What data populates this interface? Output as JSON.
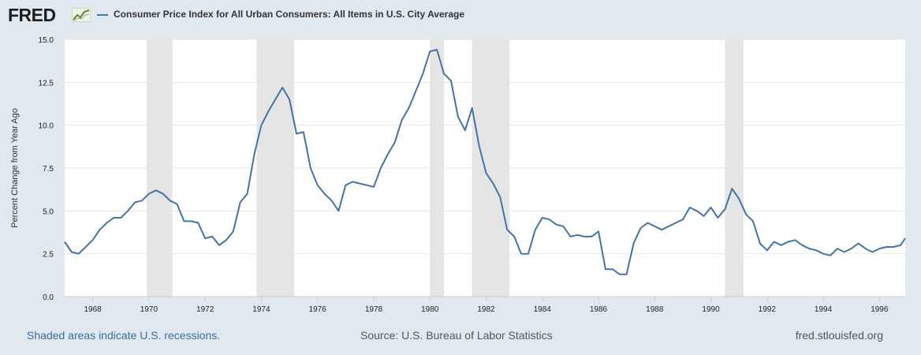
{
  "header": {
    "logo": "FRED",
    "series_title": "Consumer Price Index for All Urban Consumers: All Items in U.S. City Average"
  },
  "footer": {
    "recession_note": "Shaded areas indicate U.S. recessions.",
    "source": "Source: U.S. Bureau of Labor Statistics",
    "site": "fred.stlouisfed.org"
  },
  "colors": {
    "line": "#4572a7",
    "recession": "#e5e5e5",
    "grid": "#e6e6e6",
    "background": "#e1e9f0"
  },
  "chart_data": {
    "type": "line",
    "title": "Consumer Price Index for All Urban Consumers: All Items in U.S. City Average",
    "xlabel": "",
    "ylabel": "Percent Change from Year Ago",
    "xlim": [
      1967.0,
      1996.917
    ],
    "ylim": [
      0,
      15
    ],
    "yticks": [
      0.0,
      2.5,
      5.0,
      7.5,
      10.0,
      12.5,
      15.0
    ],
    "ytick_labels": [
      "0.0",
      "2.5",
      "5.0",
      "7.5",
      "10.0",
      "12.5",
      "15.0"
    ],
    "xticks": [
      1968,
      1970,
      1972,
      1974,
      1976,
      1978,
      1980,
      1982,
      1984,
      1986,
      1988,
      1990,
      1992,
      1994,
      1996
    ],
    "grid": true,
    "recessions": [
      [
        1969.917,
        1970.833
      ],
      [
        1973.833,
        1975.167
      ],
      [
        1980.0,
        1980.5
      ],
      [
        1981.5,
        1982.833
      ],
      [
        1990.5,
        1991.167
      ]
    ],
    "series": [
      {
        "name": "Consumer Price Index for All Urban Consumers: All Items in U.S. City Average",
        "x": [
          1967.0,
          1967.25,
          1967.5,
          1967.75,
          1968.0,
          1968.25,
          1968.5,
          1968.75,
          1969.0,
          1969.25,
          1969.5,
          1969.75,
          1970.0,
          1970.25,
          1970.5,
          1970.75,
          1971.0,
          1971.25,
          1971.5,
          1971.75,
          1972.0,
          1972.25,
          1972.5,
          1972.75,
          1973.0,
          1973.25,
          1973.5,
          1973.75,
          1974.0,
          1974.25,
          1974.5,
          1974.75,
          1975.0,
          1975.25,
          1975.5,
          1975.75,
          1976.0,
          1976.25,
          1976.5,
          1976.75,
          1977.0,
          1977.25,
          1977.5,
          1977.75,
          1978.0,
          1978.25,
          1978.5,
          1978.75,
          1979.0,
          1979.25,
          1979.5,
          1979.75,
          1980.0,
          1980.25,
          1980.5,
          1980.75,
          1981.0,
          1981.25,
          1981.5,
          1981.75,
          1982.0,
          1982.25,
          1982.5,
          1982.75,
          1983.0,
          1983.25,
          1983.5,
          1983.75,
          1984.0,
          1984.25,
          1984.5,
          1984.75,
          1985.0,
          1985.25,
          1985.5,
          1985.75,
          1986.0,
          1986.25,
          1986.5,
          1986.75,
          1987.0,
          1987.25,
          1987.5,
          1987.75,
          1988.0,
          1988.25,
          1988.5,
          1988.75,
          1989.0,
          1989.25,
          1989.5,
          1989.75,
          1990.0,
          1990.25,
          1990.5,
          1990.75,
          1991.0,
          1991.25,
          1991.5,
          1991.75,
          1992.0,
          1992.25,
          1992.5,
          1992.75,
          1993.0,
          1993.25,
          1993.5,
          1993.75,
          1994.0,
          1994.25,
          1994.5,
          1994.75,
          1995.0,
          1995.25,
          1995.5,
          1995.75,
          1996.0,
          1996.25,
          1996.5,
          1996.75,
          1996.917
        ],
        "values": [
          3.2,
          2.6,
          2.5,
          2.9,
          3.3,
          3.9,
          4.3,
          4.6,
          4.6,
          5.0,
          5.5,
          5.6,
          6.0,
          6.2,
          6.0,
          5.6,
          5.4,
          4.4,
          4.4,
          4.3,
          3.4,
          3.5,
          3.0,
          3.3,
          3.8,
          5.5,
          6.0,
          8.3,
          10.0,
          10.8,
          11.5,
          12.2,
          11.5,
          9.5,
          9.6,
          7.5,
          6.5,
          6.0,
          5.6,
          5.0,
          6.5,
          6.7,
          6.6,
          6.5,
          6.4,
          7.5,
          8.3,
          9.0,
          10.3,
          11.0,
          12.0,
          13.0,
          14.3,
          14.4,
          13.0,
          12.6,
          10.5,
          9.7,
          11.0,
          8.8,
          7.2,
          6.6,
          5.8,
          3.9,
          3.5,
          2.5,
          2.5,
          3.9,
          4.6,
          4.5,
          4.2,
          4.1,
          3.5,
          3.6,
          3.5,
          3.5,
          3.8,
          1.6,
          1.6,
          1.3,
          1.3,
          3.1,
          4.0,
          4.3,
          4.1,
          3.9,
          4.1,
          4.3,
          4.5,
          5.2,
          5.0,
          4.7,
          5.2,
          4.6,
          5.1,
          6.3,
          5.7,
          4.8,
          4.4,
          3.1,
          2.7,
          3.2,
          3.0,
          3.2,
          3.3,
          3.0,
          2.8,
          2.7,
          2.5,
          2.4,
          2.8,
          2.6,
          2.8,
          3.1,
          2.8,
          2.6,
          2.8,
          2.9,
          2.9,
          3.0,
          3.4
        ]
      }
    ]
  }
}
